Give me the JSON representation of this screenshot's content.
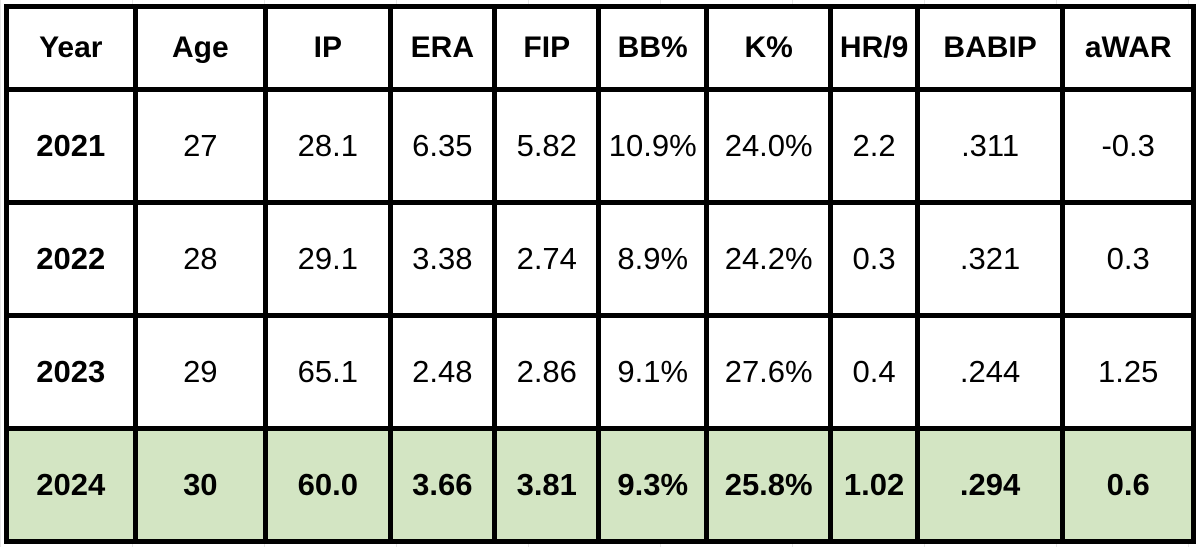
{
  "chart_data": {
    "type": "table",
    "columns": [
      "Year",
      "Age",
      "IP",
      "ERA",
      "FIP",
      "BB%",
      "K%",
      "HR/9",
      "BABIP",
      "aWAR"
    ],
    "rows": [
      [
        "2021",
        "27",
        "28.1",
        "6.35",
        "5.82",
        "10.9%",
        "24.0%",
        "2.2",
        ".311",
        "-0.3"
      ],
      [
        "2022",
        "28",
        "29.1",
        "3.38",
        "2.74",
        "8.9%",
        "24.2%",
        "0.3",
        ".321",
        "0.3"
      ],
      [
        "2023",
        "29",
        "65.1",
        "2.48",
        "2.86",
        "9.1%",
        "27.6%",
        "0.4",
        ".244",
        "1.25"
      ],
      [
        "2024",
        "30",
        "60.0",
        "3.66",
        "3.81",
        "9.3%",
        "25.8%",
        "1.02",
        ".294",
        "0.6"
      ]
    ],
    "highlighted_row": 3,
    "highlight_color": "#d3e5c3",
    "border_color": "#000000"
  }
}
